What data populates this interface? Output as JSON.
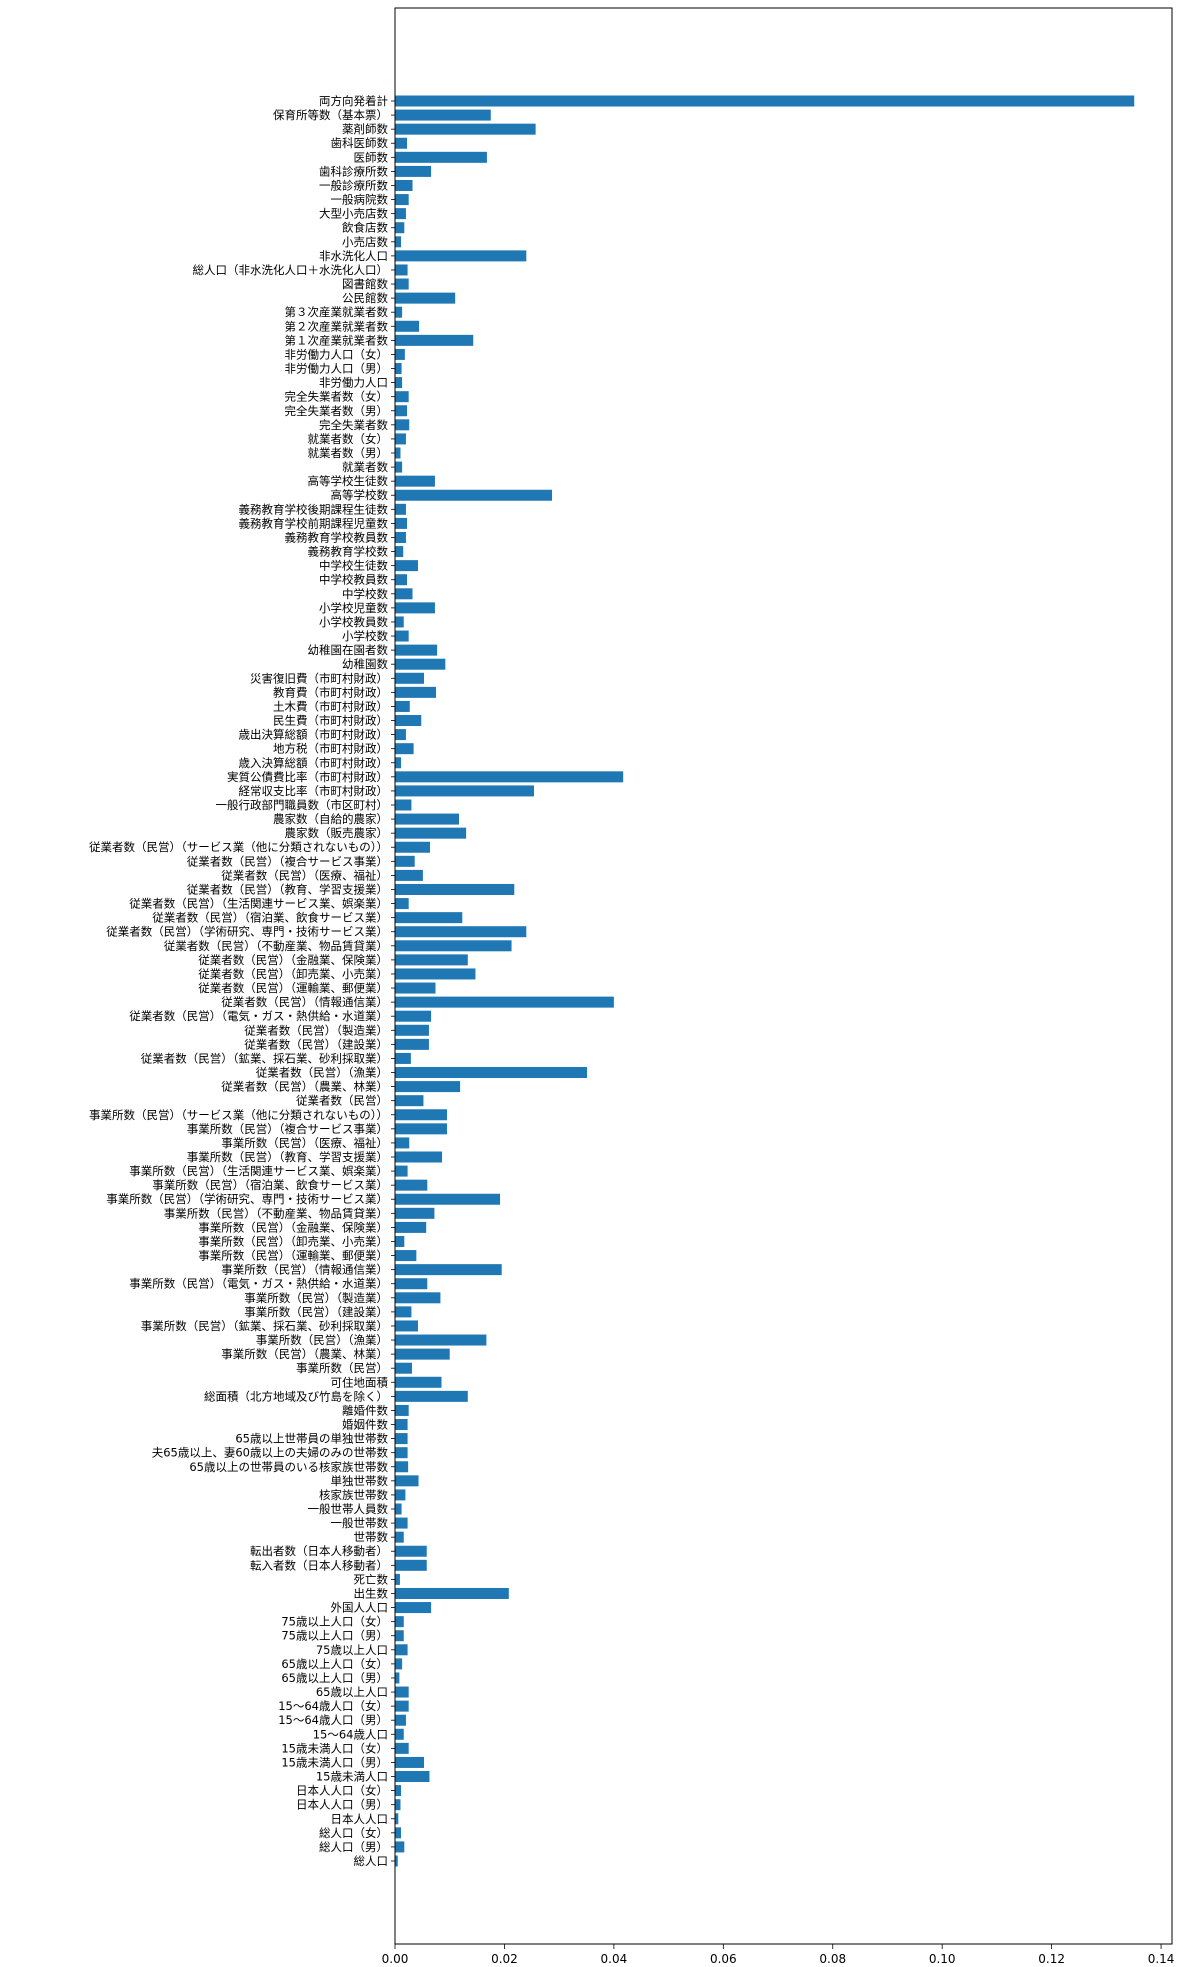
{
  "chart_data": {
    "type": "bar",
    "orientation": "horizontal",
    "bar_color": "#1f77b4",
    "xlim": [
      0.0,
      0.142
    ],
    "xticks": [
      0.0,
      0.02,
      0.04,
      0.06,
      0.08,
      0.1,
      0.12,
      0.14
    ],
    "xtick_labels": [
      "0.00",
      "0.02",
      "0.04",
      "0.06",
      "0.08",
      "0.10",
      "0.12",
      "0.14"
    ],
    "grid": false,
    "categories": [
      "両方向発着計",
      "保育所等数（基本票）",
      "薬剤師数",
      "歯科医師数",
      "医師数",
      "歯科診療所数",
      "一般診療所数",
      "一般病院数",
      "大型小売店数",
      "飲食店数",
      "小売店数",
      "非水洗化人口",
      "総人口（非水洗化人口＋水洗化人口）",
      "図書館数",
      "公民館数",
      "第３次産業就業者数",
      "第２次産業就業者数",
      "第１次産業就業者数",
      "非労働力人口（女）",
      "非労働力人口（男）",
      "非労働力人口",
      "完全失業者数（女）",
      "完全失業者数（男）",
      "完全失業者数",
      "就業者数（女）",
      "就業者数（男）",
      "就業者数",
      "高等学校生徒数",
      "高等学校数",
      "義務教育学校後期課程生徒数",
      "義務教育学校前期課程児童数",
      "義務教育学校教員数",
      "義務教育学校数",
      "中学校生徒数",
      "中学校教員数",
      "中学校数",
      "小学校児童数",
      "小学校教員数",
      "小学校数",
      "幼稚園在園者数",
      "幼稚園数",
      "災害復旧費（市町村財政）",
      "教育費（市町村財政）",
      "土木費（市町村財政）",
      "民生費（市町村財政）",
      "歳出決算総額（市町村財政）",
      "地方税（市町村財政）",
      "歳入決算総額（市町村財政）",
      "実質公債費比率（市町村財政）",
      "経常収支比率（市町村財政）",
      "一般行政部門職員数（市区町村）",
      "農家数（自給的農家）",
      "農家数（販売農家）",
      "従業者数（民営）（サービス業（他に分類されないもの））",
      "従業者数（民営）（複合サービス事業）",
      "従業者数（民営）（医療、福祉）",
      "従業者数（民営）（教育、学習支援業）",
      "従業者数（民営）（生活関連サービス業、娯楽業）",
      "従業者数（民営）（宿泊業、飲食サービス業）",
      "従業者数（民営）（学術研究、専門・技術サービス業）",
      "従業者数（民営）（不動産業、物品賃貸業）",
      "従業者数（民営）（金融業、保険業）",
      "従業者数（民営）（卸売業、小売業）",
      "従業者数（民営）（運輸業、郵便業）",
      "従業者数（民営）（情報通信業）",
      "従業者数（民営）（電気・ガス・熱供給・水道業）",
      "従業者数（民営）（製造業）",
      "従業者数（民営）（建設業）",
      "従業者数（民営）（鉱業、採石業、砂利採取業）",
      "従業者数（民営）（漁業）",
      "従業者数（民営）（農業、林業）",
      "従業者数（民営）",
      "事業所数（民営）（サービス業（他に分類されないもの））",
      "事業所数（民営）（複合サービス事業）",
      "事業所数（民営）（医療、福祉）",
      "事業所数（民営）（教育、学習支援業）",
      "事業所数（民営）（生活関連サービス業、娯楽業）",
      "事業所数（民営）（宿泊業、飲食サービス業）",
      "事業所数（民営）（学術研究、専門・技術サービス業）",
      "事業所数（民営）（不動産業、物品賃貸業）",
      "事業所数（民営）（金融業、保険業）",
      "事業所数（民営）（卸売業、小売業）",
      "事業所数（民営）（運輸業、郵便業）",
      "事業所数（民営）（情報通信業）",
      "事業所数（民営）（電気・ガス・熱供給・水道業）",
      "事業所数（民営）（製造業）",
      "事業所数（民営）（建設業）",
      "事業所数（民営）（鉱業、採石業、砂利採取業）",
      "事業所数（民営）（漁業）",
      "事業所数（民営）（農業、林業）",
      "事業所数（民営）",
      "可住地面積",
      "総面積（北方地域及び竹島を除く）",
      "離婚件数",
      "婚姻件数",
      "65歳以上世帯員の単独世帯数",
      "夫65歳以上、妻60歳以上の夫婦のみの世帯数",
      "65歳以上の世帯員のいる核家族世帯数",
      "単独世帯数",
      "核家族世帯数",
      "一般世帯人員数",
      "一般世帯数",
      "世帯数",
      "転出者数（日本人移動者）",
      "転入者数（日本人移動者）",
      "死亡数",
      "出生数",
      "外国人人口",
      "75歳以上人口（女）",
      "75歳以上人口（男）",
      "75歳以上人口",
      "65歳以上人口（女）",
      "65歳以上人口（男）",
      "65歳以上人口",
      "15〜64歳人口（女）",
      "15〜64歳人口（男）",
      "15〜64歳人口",
      "15歳未満人口（女）",
      "15歳未満人口（男）",
      "15歳未満人口",
      "日本人人口（女）",
      "日本人人口（男）",
      "日本人人口",
      "総人口（女）",
      "総人口（男）",
      "総人口"
    ],
    "values": [
      0.1351,
      0.0175,
      0.0257,
      0.0022,
      0.0168,
      0.0066,
      0.0032,
      0.0025,
      0.002,
      0.0017,
      0.0011,
      0.024,
      0.0023,
      0.0025,
      0.011,
      0.0013,
      0.0044,
      0.0143,
      0.0018,
      0.0012,
      0.0013,
      0.0025,
      0.0022,
      0.0026,
      0.002,
      0.001,
      0.0013,
      0.0073,
      0.0287,
      0.002,
      0.0022,
      0.002,
      0.0015,
      0.0042,
      0.0022,
      0.0032,
      0.0073,
      0.0016,
      0.0025,
      0.0077,
      0.0092,
      0.0053,
      0.0075,
      0.0027,
      0.0048,
      0.002,
      0.0034,
      0.0011,
      0.0417,
      0.0254,
      0.003,
      0.0117,
      0.013,
      0.0064,
      0.0036,
      0.0051,
      0.0218,
      0.0025,
      0.0123,
      0.024,
      0.0213,
      0.0133,
      0.0147,
      0.0074,
      0.04,
      0.0066,
      0.0062,
      0.0062,
      0.0029,
      0.0351,
      0.0119,
      0.0052,
      0.0095,
      0.0095,
      0.0026,
      0.0086,
      0.0023,
      0.0059,
      0.0192,
      0.0072,
      0.0057,
      0.0017,
      0.0039,
      0.0195,
      0.0059,
      0.0083,
      0.003,
      0.0042,
      0.0167,
      0.01,
      0.0031,
      0.0085,
      0.0133,
      0.0025,
      0.0023,
      0.0023,
      0.0023,
      0.0024,
      0.0043,
      0.0019,
      0.0012,
      0.0023,
      0.0016,
      0.0058,
      0.0058,
      0.0009,
      0.0208,
      0.0066,
      0.0016,
      0.0016,
      0.0023,
      0.0013,
      0.0008,
      0.0025,
      0.0025,
      0.002,
      0.0016,
      0.0025,
      0.0053,
      0.0063,
      0.0011,
      0.001,
      0.0006,
      0.0011,
      0.0017,
      0.0005
    ]
  }
}
